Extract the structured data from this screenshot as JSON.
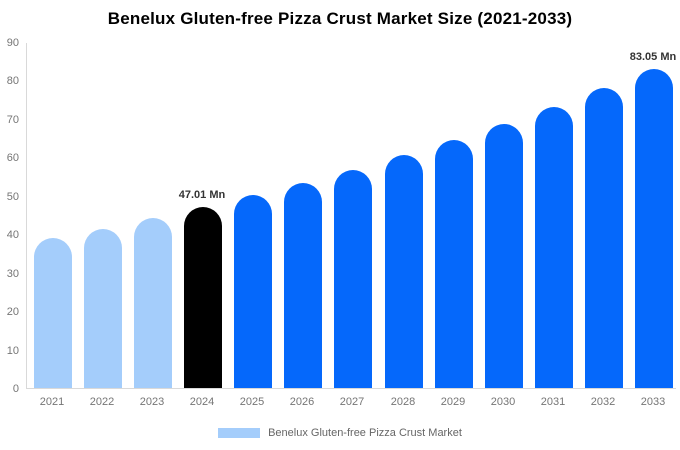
{
  "title": "Benelux Gluten-free Pizza Crust Market Size (2021-2033)",
  "legend": {
    "label": "Benelux Gluten-free Pizza Crust Market",
    "swatch_color": "#a4cdfb"
  },
  "colors": {
    "historical_bar": "#a4cdfb",
    "base_year_bar": "#000000",
    "forecast_bar": "#0568fb",
    "axis_line": "#d9d9d9",
    "axis_text": "#757575",
    "annotation_text": "#333333",
    "title_text": "#000000"
  },
  "chart_data": {
    "type": "bar",
    "title": "Benelux Gluten-free Pizza Crust Market Size (2021-2033)",
    "xlabel": "",
    "ylabel": "",
    "unit": "Mn",
    "categories": [
      "2021",
      "2022",
      "2023",
      "2024",
      "2025",
      "2026",
      "2027",
      "2028",
      "2029",
      "2030",
      "2031",
      "2032",
      "2033"
    ],
    "values": [
      38.9,
      41.4,
      44.1,
      47.01,
      50.1,
      53.4,
      56.8,
      60.6,
      64.5,
      68.7,
      73.2,
      78.0,
      83.05
    ],
    "bar_colors": [
      "#a4cdfb",
      "#a4cdfb",
      "#a4cdfb",
      "#000000",
      "#0568fb",
      "#0568fb",
      "#0568fb",
      "#0568fb",
      "#0568fb",
      "#0568fb",
      "#0568fb",
      "#0568fb",
      "#0568fb"
    ],
    "ylim": [
      0,
      90
    ],
    "yticks": [
      0,
      10,
      20,
      30,
      40,
      50,
      60,
      70,
      80,
      90
    ],
    "grid": false,
    "legend_position": "bottom",
    "annotations": [
      {
        "category": "2024",
        "text": "47.01 Mn"
      },
      {
        "category": "2033",
        "text": "83.05 Mn"
      }
    ]
  }
}
